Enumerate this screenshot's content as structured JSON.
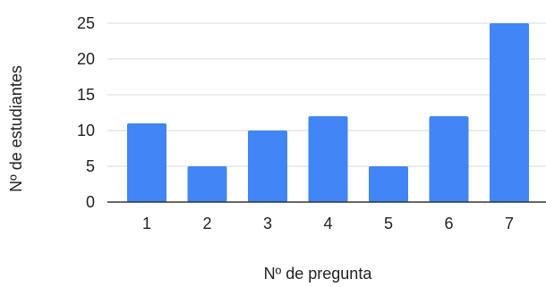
{
  "chart_data": {
    "type": "bar",
    "title": "",
    "xlabel": "Nº de pregunta",
    "ylabel": "Nº de estudiantes",
    "categories": [
      "1",
      "2",
      "3",
      "4",
      "5",
      "6",
      "7"
    ],
    "values": [
      11,
      5,
      10,
      12,
      5,
      12,
      25
    ],
    "ylim": [
      0,
      25
    ],
    "yticks": [
      "0",
      "5",
      "10",
      "15",
      "20",
      "25"
    ],
    "grid": true,
    "legend": "none",
    "bar_color": "#4285f4",
    "grid_color": "#d9d9d9",
    "axis_color": "#333333"
  }
}
